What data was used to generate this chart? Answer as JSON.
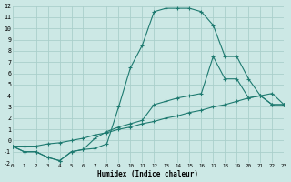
{
  "bg_color": "#cce8e5",
  "grid_color": "#aacfcb",
  "line_color": "#1e7a70",
  "xlabel": "Humidex (Indice chaleur)",
  "xlim": [
    0,
    23
  ],
  "ylim": [
    -2,
    12
  ],
  "xticks": [
    0,
    1,
    2,
    3,
    4,
    5,
    6,
    7,
    8,
    9,
    10,
    11,
    12,
    13,
    14,
    15,
    16,
    17,
    18,
    19,
    20,
    21,
    22,
    23
  ],
  "yticks": [
    -2,
    -1,
    0,
    1,
    2,
    3,
    4,
    5,
    6,
    7,
    8,
    9,
    10,
    11,
    12
  ],
  "curve1_x": [
    0,
    1,
    2,
    3,
    4,
    5,
    6,
    7,
    8,
    9,
    10,
    11,
    12,
    13,
    14,
    15,
    16,
    17,
    18,
    19,
    20,
    21,
    22,
    23
  ],
  "curve1_y": [
    -0.5,
    -1.0,
    -1.0,
    -1.5,
    -1.8,
    -1.0,
    -0.8,
    -0.7,
    -0.3,
    3.0,
    6.5,
    8.5,
    11.5,
    11.8,
    11.8,
    11.8,
    11.5,
    10.3,
    7.5,
    7.5,
    5.5,
    4.0,
    3.2,
    3.2
  ],
  "curve2_x": [
    0,
    1,
    2,
    3,
    4,
    5,
    6,
    7,
    8,
    9,
    10,
    11,
    12,
    13,
    14,
    15,
    16,
    17,
    18,
    19,
    20,
    21,
    22,
    23
  ],
  "curve2_y": [
    -0.5,
    -1.0,
    -1.0,
    -1.5,
    -1.8,
    -1.0,
    -0.8,
    0.2,
    0.8,
    1.2,
    1.5,
    1.8,
    3.2,
    3.5,
    3.8,
    4.0,
    4.2,
    7.5,
    5.5,
    5.5,
    3.8,
    4.0,
    3.2,
    3.2
  ],
  "curve3_x": [
    0,
    1,
    2,
    3,
    4,
    5,
    6,
    7,
    8,
    9,
    10,
    11,
    12,
    13,
    14,
    15,
    16,
    17,
    18,
    19,
    20,
    21,
    22,
    23
  ],
  "curve3_y": [
    -0.5,
    -0.5,
    -0.5,
    -0.3,
    -0.2,
    0.0,
    0.2,
    0.5,
    0.7,
    1.0,
    1.2,
    1.5,
    1.7,
    2.0,
    2.2,
    2.5,
    2.7,
    3.0,
    3.2,
    3.5,
    3.8,
    4.0,
    4.2,
    3.2
  ]
}
